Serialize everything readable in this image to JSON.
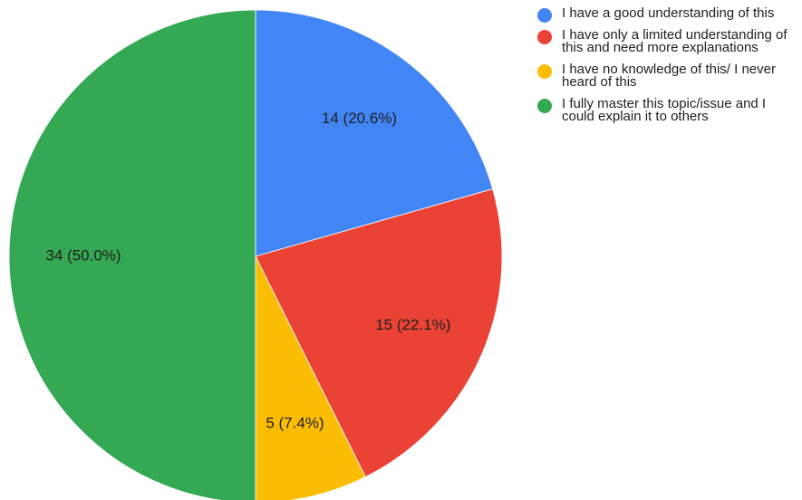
{
  "chart_data": {
    "type": "pie",
    "slices": [
      {
        "label": "I have a good understanding of this",
        "value": 14,
        "display": "14 (20.6%)",
        "color": "#4285f4"
      },
      {
        "label": "I have only a limited understanding of this and need more explanations",
        "value": 15,
        "display": "15 (22.1%)",
        "color": "#ea4335"
      },
      {
        "label": "I have no knowledge of this/ I never heard of this",
        "value": 5,
        "display": "5 (7.4%)",
        "color": "#fbbc04"
      },
      {
        "label": "I fully master this topic/issue and I could explain it to others",
        "value": 34,
        "display": "34 (50.0%)",
        "color": "#34a853"
      }
    ],
    "legend_position": "top-right"
  }
}
